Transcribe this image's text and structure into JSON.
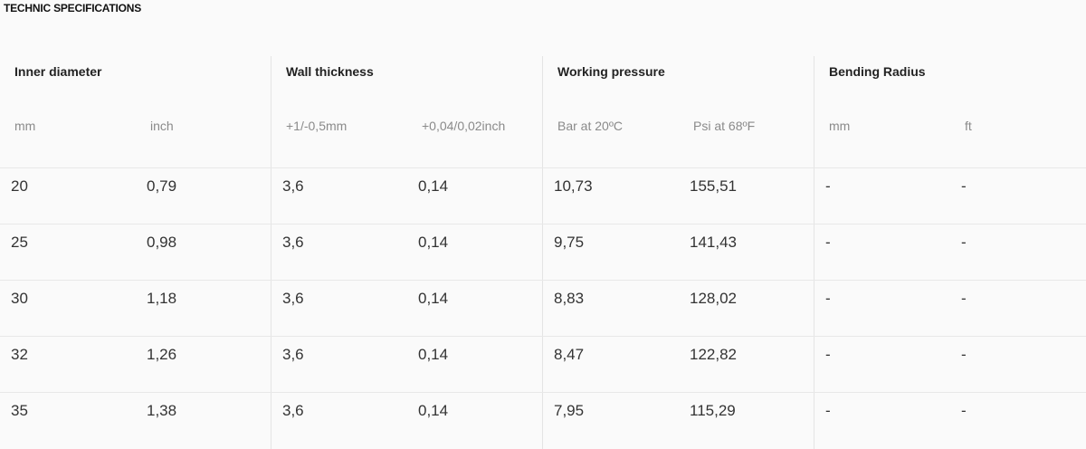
{
  "section_title": "TECHNIC SPECIFICATIONS",
  "groups": [
    {
      "label": "Inner diameter"
    },
    {
      "label": "Wall thickness"
    },
    {
      "label": "Working pressure"
    },
    {
      "label": "Bending Radius"
    }
  ],
  "subheaders": [
    "mm",
    "inch",
    "+1/-0,5mm",
    "+0,04/0,02inch",
    "Bar at 20ºC",
    "Psi at 68ºF",
    "mm",
    "ft"
  ],
  "rows": [
    [
      "20",
      "0,79",
      "3,6",
      "0,14",
      "10,73",
      "155,51",
      "-",
      "-"
    ],
    [
      "25",
      "0,98",
      "3,6",
      "0,14",
      "9,75",
      "141,43",
      "-",
      "-"
    ],
    [
      "30",
      "1,18",
      "3,6",
      "0,14",
      "8,83",
      "128,02",
      "-",
      "-"
    ],
    [
      "32",
      "1,26",
      "3,6",
      "0,14",
      "8,47",
      "122,82",
      "-",
      "-"
    ],
    [
      "35",
      "1,38",
      "3,6",
      "0,14",
      "7,95",
      "115,29",
      "-",
      "-"
    ]
  ]
}
